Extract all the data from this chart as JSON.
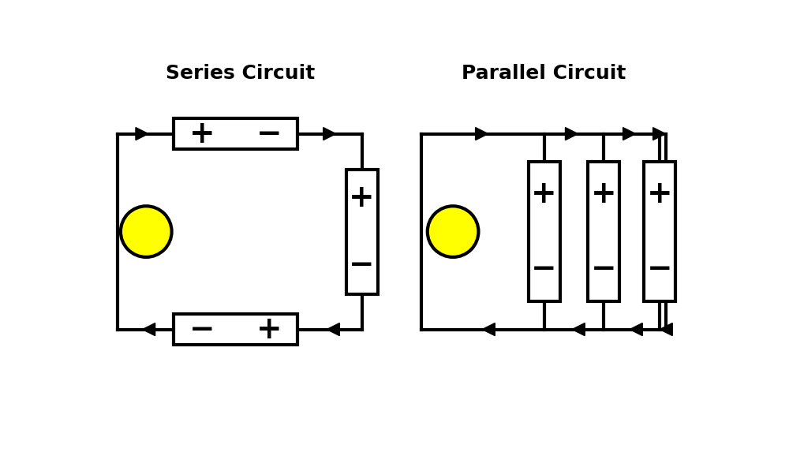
{
  "bg_color": "#ffffff",
  "title_series": "Series Circuit",
  "title_parallel": "Parallel Circuit",
  "title_fontsize": 18,
  "title_fontweight": "bold",
  "line_color": "#000000",
  "line_width": 3.0,
  "bulb_fill": "#ffff00",
  "plus_minus_fontsize": 28,
  "plus_minus_fontweight": "bold",
  "arrow_size": 0.16
}
